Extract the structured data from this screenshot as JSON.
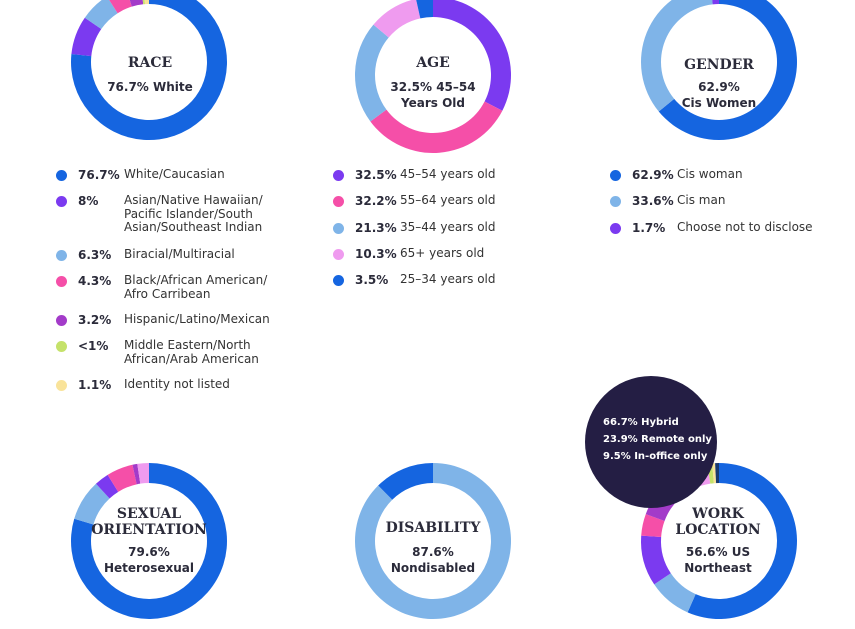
{
  "chart_data": [
    {
      "type": "pie",
      "title": "RACE",
      "center_value": "76.7% White",
      "colors_note": "donut",
      "slices": [
        {
          "label": "White/Caucasian",
          "pct_text": "76.7%",
          "value": 76.7,
          "color": "#1565e0"
        },
        {
          "label": "Asian/Native Hawaiian/ Pacific Islander/South Asian/Southeast Indian",
          "pct_text": "8%",
          "value": 8,
          "color": "#7b3af0"
        },
        {
          "label": "Biracial/Multiracial",
          "pct_text": "6.3%",
          "value": 6.3,
          "color": "#7fb4e8"
        },
        {
          "label": "Black/African American/ Afro Carribean",
          "pct_text": "4.3%",
          "value": 4.3,
          "color": "#f54fa8"
        },
        {
          "label": "Hispanic/Latino/Mexican",
          "pct_text": "3.2%",
          "value": 3.2,
          "color": "#a33bc9"
        },
        {
          "label": "Middle Eastern/North African/Arab American",
          "pct_text": "<1%",
          "value": 0.5,
          "color": "#c5e26a"
        },
        {
          "label": "Identity not listed",
          "pct_text": "1.1%",
          "value": 1.1,
          "color": "#f9e39a"
        }
      ]
    },
    {
      "type": "pie",
      "title": "AGE",
      "center_value": "32.5% 45–54 Years Old",
      "slices": [
        {
          "label": "45–54 years old",
          "pct_text": "32.5%",
          "value": 32.5,
          "color": "#7b3af0"
        },
        {
          "label": "55–64 years old",
          "pct_text": "32.2%",
          "value": 32.2,
          "color": "#f54fa8"
        },
        {
          "label": "35–44 years old",
          "pct_text": "21.3%",
          "value": 21.3,
          "color": "#7fb4e8"
        },
        {
          "label": "65+ years old",
          "pct_text": "10.3%",
          "value": 10.3,
          "color": "#ef9bef"
        },
        {
          "label": "25–34 years old",
          "pct_text": "3.5%",
          "value": 3.5,
          "color": "#1565e0"
        }
      ]
    },
    {
      "type": "pie",
      "title": "GENDER",
      "center_value": "62.9% Cis Women",
      "slices": [
        {
          "label": "Cis woman",
          "pct_text": "62.9%",
          "value": 62.9,
          "color": "#1565e0"
        },
        {
          "label": "Cis man",
          "pct_text": "33.6%",
          "value": 33.6,
          "color": "#7fb4e8"
        },
        {
          "label": "Choose not to disclose",
          "pct_text": "1.7%",
          "value": 1.7,
          "color": "#7b3af0"
        }
      ]
    },
    {
      "type": "pie",
      "title": "SEXUAL ORIENTATION",
      "center_value": "79.6% Heterosexual",
      "slices": [
        {
          "label": "Heterosexual",
          "value": 79.6,
          "color": "#1565e0"
        },
        {
          "label": "",
          "value": 8.5,
          "color": "#7fb4e8"
        },
        {
          "label": "",
          "value": 3.0,
          "color": "#7b3af0"
        },
        {
          "label": "",
          "value": 5.5,
          "color": "#f54fa8"
        },
        {
          "label": "",
          "value": 1.0,
          "color": "#a33bc9"
        },
        {
          "label": "",
          "value": 2.4,
          "color": "#ef9bef"
        }
      ]
    },
    {
      "type": "pie",
      "title": "DISABILITY",
      "center_value": "87.6% Nondisabled",
      "slices": [
        {
          "label": "Nondisabled",
          "value": 87.6,
          "color": "#7fb4e8"
        },
        {
          "label": "",
          "value": 12.4,
          "color": "#1565e0"
        }
      ]
    },
    {
      "type": "pie",
      "title": "WORK LOCATION",
      "center_value": "56.6% US Northeast",
      "slices": [
        {
          "label": "US Northeast",
          "value": 56.6,
          "color": "#1565e0"
        },
        {
          "label": "",
          "value": 9.0,
          "color": "#7fb4e8"
        },
        {
          "label": "",
          "value": 10.5,
          "color": "#7b3af0"
        },
        {
          "label": "",
          "value": 4.5,
          "color": "#f54fa8"
        },
        {
          "label": "",
          "value": 7.5,
          "color": "#a33bc9"
        },
        {
          "label": "",
          "value": 9.5,
          "color": "#ef9bef"
        },
        {
          "label": "",
          "value": 1.0,
          "color": "#c5e26a"
        },
        {
          "label": "",
          "value": 0.6,
          "color": "#f9e39a"
        },
        {
          "label": "",
          "value": 0.8,
          "color": "#1a3a6e"
        }
      ]
    }
  ],
  "work_location_bubble": [
    "66.7% Hybrid",
    "23.9% Remote only",
    "9.5% In-office only"
  ],
  "center_titles": {
    "race": "RACE",
    "race_line1": "76.7% White",
    "age": "AGE",
    "age_line1": "32.5% 45–54",
    "age_line2": "Years Old",
    "gender": "GENDER",
    "gender_line1": "62.9%",
    "gender_line2": "Cis Women",
    "sexual_line1": "SEXUAL",
    "sexual_line2": "ORIENTATION",
    "sexual_v1": "79.6%",
    "sexual_v2": "Heterosexual",
    "disability": "DISABILITY",
    "disability_v1": "87.6%",
    "disability_v2": "Nondisabled",
    "work_line1": "WORK",
    "work_line2": "LOCATION",
    "work_v1": "56.6% US",
    "work_v2": "Northeast"
  }
}
